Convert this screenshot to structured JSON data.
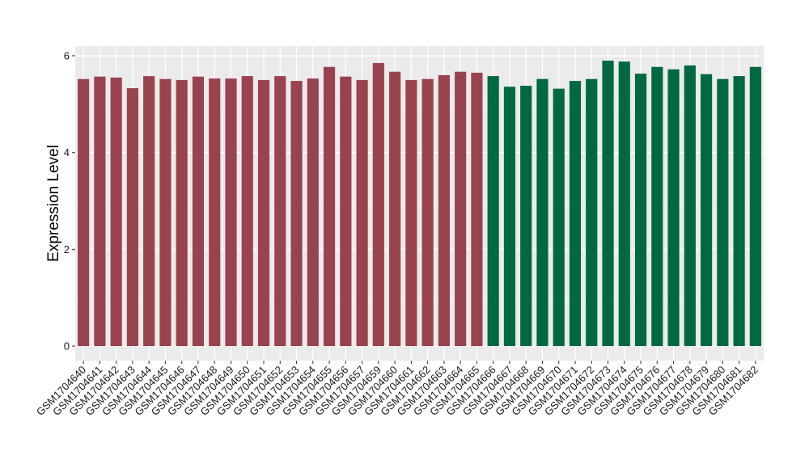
{
  "chart_data": {
    "type": "bar",
    "title": "",
    "xlabel": "",
    "ylabel": "Expression Level",
    "ylim": [
      -0.3,
      6.2
    ],
    "yticks": [
      0,
      2,
      4,
      6
    ],
    "grid": true,
    "legend": "none",
    "categories": [
      "GSM1704640",
      "GSM1704641",
      "GSM1704642",
      "GSM1704643",
      "GSM1704644",
      "GSM1704645",
      "GSM1704646",
      "GSM1704647",
      "GSM1704648",
      "GSM1704649",
      "GSM1704650",
      "GSM1704651",
      "GSM1704652",
      "GSM1704653",
      "GSM1704654",
      "GSM1704655",
      "GSM1704656",
      "GSM1704657",
      "GSM1704659",
      "GSM1704660",
      "GSM1704661",
      "GSM1704662",
      "GSM1704663",
      "GSM1704664",
      "GSM1704665",
      "GSM1704666",
      "GSM1704667",
      "GSM1704668",
      "GSM1704669",
      "GSM1704670",
      "GSM1704671",
      "GSM1704672",
      "GSM1704673",
      "GSM1704674",
      "GSM1704675",
      "GSM1704676",
      "GSM1704677",
      "GSM1704678",
      "GSM1704679",
      "GSM1704680",
      "GSM1704681",
      "GSM1704682"
    ],
    "values": [
      5.52,
      5.57,
      5.55,
      5.33,
      5.58,
      5.52,
      5.5,
      5.57,
      5.53,
      5.53,
      5.58,
      5.5,
      5.58,
      5.48,
      5.53,
      5.77,
      5.57,
      5.5,
      5.85,
      5.67,
      5.5,
      5.52,
      5.6,
      5.67,
      5.65,
      5.58,
      5.36,
      5.38,
      5.52,
      5.32,
      5.48,
      5.52,
      5.9,
      5.88,
      5.63,
      5.77,
      5.72,
      5.8,
      5.62,
      5.52,
      5.58,
      5.77
    ],
    "groups": [
      "a",
      "a",
      "a",
      "a",
      "a",
      "a",
      "a",
      "a",
      "a",
      "a",
      "a",
      "a",
      "a",
      "a",
      "a",
      "a",
      "a",
      "a",
      "a",
      "a",
      "a",
      "a",
      "a",
      "a",
      "a",
      "b",
      "b",
      "b",
      "b",
      "b",
      "b",
      "b",
      "b",
      "b",
      "b",
      "b",
      "b",
      "b",
      "b",
      "b",
      "b",
      "b"
    ],
    "colors": {
      "a": "#9a4350",
      "b": "#006940"
    },
    "panel_background": "#ebebeb",
    "gridline_color": "#ffffff"
  }
}
